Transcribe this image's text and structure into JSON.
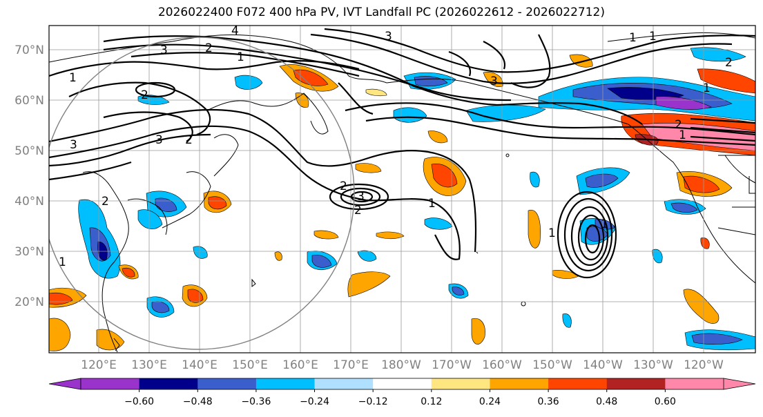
{
  "title": "2026022400 F072 400 hPa PV, IVT Landfall PC (2026022612 - 2026022712)",
  "map": {
    "lat_labels": [
      "70°N",
      "60°N",
      "50°N",
      "40°N",
      "30°N",
      "20°N"
    ],
    "lon_labels": [
      "120°E",
      "130°E",
      "140°E",
      "150°E",
      "160°E",
      "170°E",
      "180°W",
      "170°W",
      "160°W",
      "150°W",
      "140°W",
      "130°W",
      "120°W"
    ],
    "contour_labels": [
      "1",
      "2",
      "3",
      "4"
    ]
  },
  "colorbar": {
    "ticks": [
      "−0.60",
      "−0.48",
      "−0.36",
      "−0.24",
      "−0.12",
      "0.12",
      "0.24",
      "0.36",
      "0.48",
      "0.60"
    ],
    "colors": [
      "#9933cc",
      "#00008b",
      "#3a5fcd",
      "#00bfff",
      "#b0e0ff",
      "#ffffff",
      "#ffe680",
      "#ffa500",
      "#ff4500",
      "#b22222",
      "#ff88aa"
    ]
  }
}
